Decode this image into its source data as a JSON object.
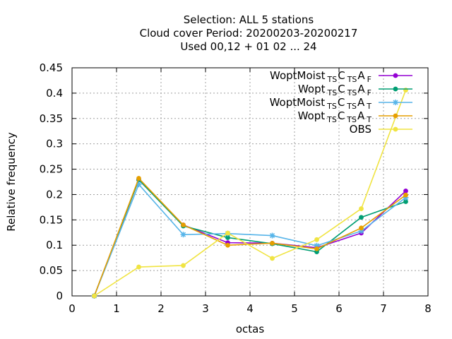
{
  "chart_data": {
    "type": "line",
    "title_lines": [
      "Selection: ALL      5 stations",
      "Cloud cover  Period: 20200203-20200217",
      "Used  00,12  + 01 02 ... 24"
    ],
    "xlabel": "octas",
    "ylabel": "Relative frequency",
    "xlim": [
      0,
      8
    ],
    "ylim": [
      0,
      0.45
    ],
    "xticks": [
      "0",
      "1",
      "2",
      "3",
      "4",
      "5",
      "6",
      "7",
      "8"
    ],
    "yticks": [
      "0",
      "0.05",
      "0.1",
      "0.15",
      "0.2",
      "0.25",
      "0.3",
      "0.35",
      "0.4",
      "0.45"
    ],
    "grid": true,
    "legend_position": "top-right",
    "x": [
      0.5,
      1.5,
      2.5,
      3.5,
      4.5,
      5.5,
      6.5,
      7.5
    ],
    "series": [
      {
        "name": "WoptMoist",
        "sub1": "TS",
        "mid": "C",
        "sub2": "TS",
        "tail": "A",
        "sub3": "F",
        "color": "#9400d3",
        "marker": "circle",
        "values": [
          0.0,
          0.229,
          0.14,
          0.105,
          0.104,
          0.095,
          0.124,
          0.207
        ]
      },
      {
        "name": "Wopt",
        "sub1": "TS",
        "mid": "C",
        "sub2": "TS",
        "tail": "A",
        "sub3": "F",
        "color": "#009e73",
        "marker": "circle",
        "values": [
          0.0,
          0.229,
          0.138,
          0.115,
          0.103,
          0.087,
          0.155,
          0.186
        ]
      },
      {
        "name": "WoptMoist",
        "sub1": "TS",
        "mid": "C",
        "sub2": "TS",
        "tail": "A",
        "sub3": "T",
        "color": "#56b4e9",
        "marker": "star",
        "values": [
          0.0,
          0.22,
          0.121,
          0.123,
          0.119,
          0.099,
          0.128,
          0.194
        ]
      },
      {
        "name": "Wopt",
        "sub1": "TS",
        "mid": "C",
        "sub2": "TS",
        "tail": "A",
        "sub3": "T",
        "color": "#e69f00",
        "marker": "circle",
        "values": [
          0.0,
          0.232,
          0.14,
          0.1,
          0.104,
          0.093,
          0.134,
          0.199
        ]
      },
      {
        "name": "OBS",
        "sub1": "",
        "mid": "",
        "sub2": "",
        "tail": "",
        "sub3": "",
        "color": "#f0e442",
        "marker": "circle",
        "values": [
          0.0,
          0.057,
          0.06,
          0.124,
          0.074,
          0.111,
          0.172,
          0.406
        ]
      }
    ]
  }
}
